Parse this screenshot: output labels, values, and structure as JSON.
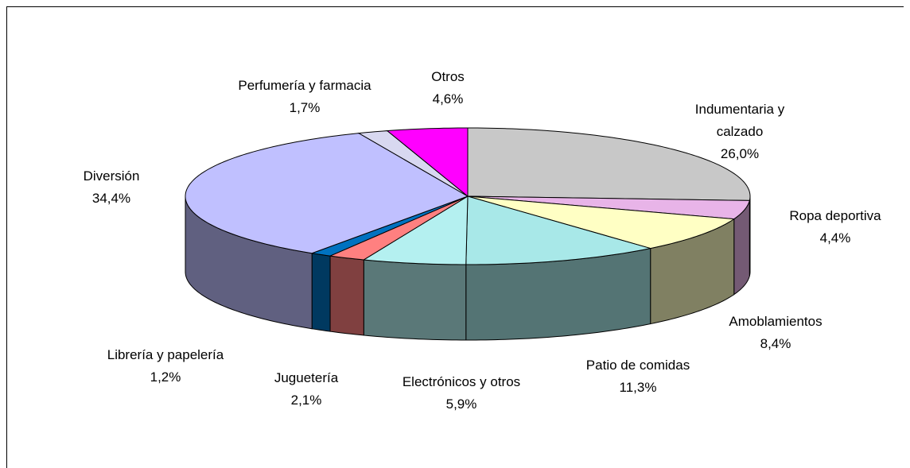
{
  "chart_data": {
    "type": "pie3d",
    "categories": [
      "Indumentaria y calzado",
      "Ropa deportiva",
      "Amoblamientos",
      "Patio de comidas",
      "Electrónicos y otros",
      "Juguetería",
      "Librería y papelería",
      "Diversión",
      "Perfumería y farmacia",
      "Otros"
    ],
    "values": [
      26.0,
      4.4,
      8.4,
      11.3,
      5.9,
      2.1,
      1.2,
      34.4,
      1.7,
      4.6
    ],
    "value_labels": [
      "26,0%",
      "4,4%",
      "8,4%",
      "11,3%",
      "5,9%",
      "2,1%",
      "1,2%",
      "34,4%",
      "1,7%",
      "4,6%"
    ],
    "colors": [
      "#c8c8c8",
      "#e8b4e8",
      "#ffffc4",
      "#a8e8e8",
      "#b4f0f0",
      "#ff8080",
      "#0072c0",
      "#c0c0ff",
      "#d8d8f0",
      "#ff00ff"
    ]
  }
}
